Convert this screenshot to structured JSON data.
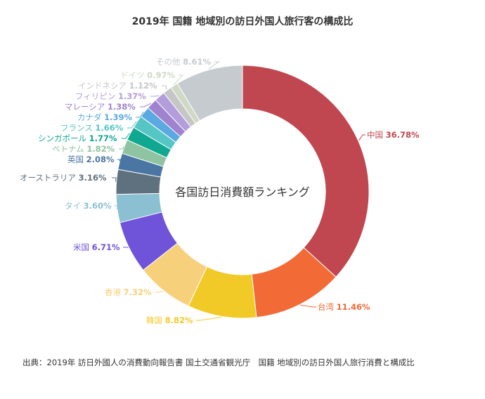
{
  "title": "2019年 国籍 地域別の訪日外国人旅行客の構成比",
  "source": "出典：2019年 訪日外國人の消費動向報告書 国土交通省観光庁　国籍 地域別の訪日外国人旅行消費と構成比",
  "chart_data": {
    "type": "pie",
    "center_text": "各国訪日消費額ランキング",
    "slices": [
      {
        "name": "中国",
        "value": 36.78,
        "label": "36.78%",
        "color": "#c0474f"
      },
      {
        "name": "台湾",
        "value": 11.46,
        "label": "11.46%",
        "color": "#f26a36"
      },
      {
        "name": "韓国",
        "value": 8.82,
        "label": "8.82%",
        "color": "#f2ca28"
      },
      {
        "name": "香港",
        "value": 7.32,
        "label": "7.32%",
        "color": "#f7d07c"
      },
      {
        "name": "米国",
        "value": 6.71,
        "label": "6.71%",
        "color": "#6f53d8"
      },
      {
        "name": "タイ",
        "value": 3.6,
        "label": "3.60%",
        "color": "#8bbfd2"
      },
      {
        "name": "オーストラリア",
        "value": 3.16,
        "label": "3.16%",
        "color": "#5f707e"
      },
      {
        "name": "英国",
        "value": 2.08,
        "label": "2.08%",
        "color": "#4b76a4"
      },
      {
        "name": "ベトナム",
        "value": 1.82,
        "label": "1.82%",
        "color": "#8fc4a2"
      },
      {
        "name": "シンガポール",
        "value": 1.77,
        "label": "1.77%",
        "color": "#10a891"
      },
      {
        "name": "フランス",
        "value": 1.66,
        "label": "1.66%",
        "color": "#56c6c4"
      },
      {
        "name": "カナダ",
        "value": 1.39,
        "label": "1.39%",
        "color": "#5aa9e0"
      },
      {
        "name": "マレーシア",
        "value": 1.38,
        "label": "1.38%",
        "color": "#9f83cf"
      },
      {
        "name": "フィリピン",
        "value": 1.37,
        "label": "1.37%",
        "color": "#b39ddb"
      },
      {
        "name": "インドネシア",
        "value": 1.12,
        "label": "1.12%",
        "color": "#c6c6c6"
      },
      {
        "name": "ドイツ",
        "value": 0.97,
        "label": "0.97%",
        "color": "#cfd9c4"
      },
      {
        "name": "その他",
        "value": 8.61,
        "label": "8.61%",
        "color": "#c5cbcf"
      }
    ]
  }
}
